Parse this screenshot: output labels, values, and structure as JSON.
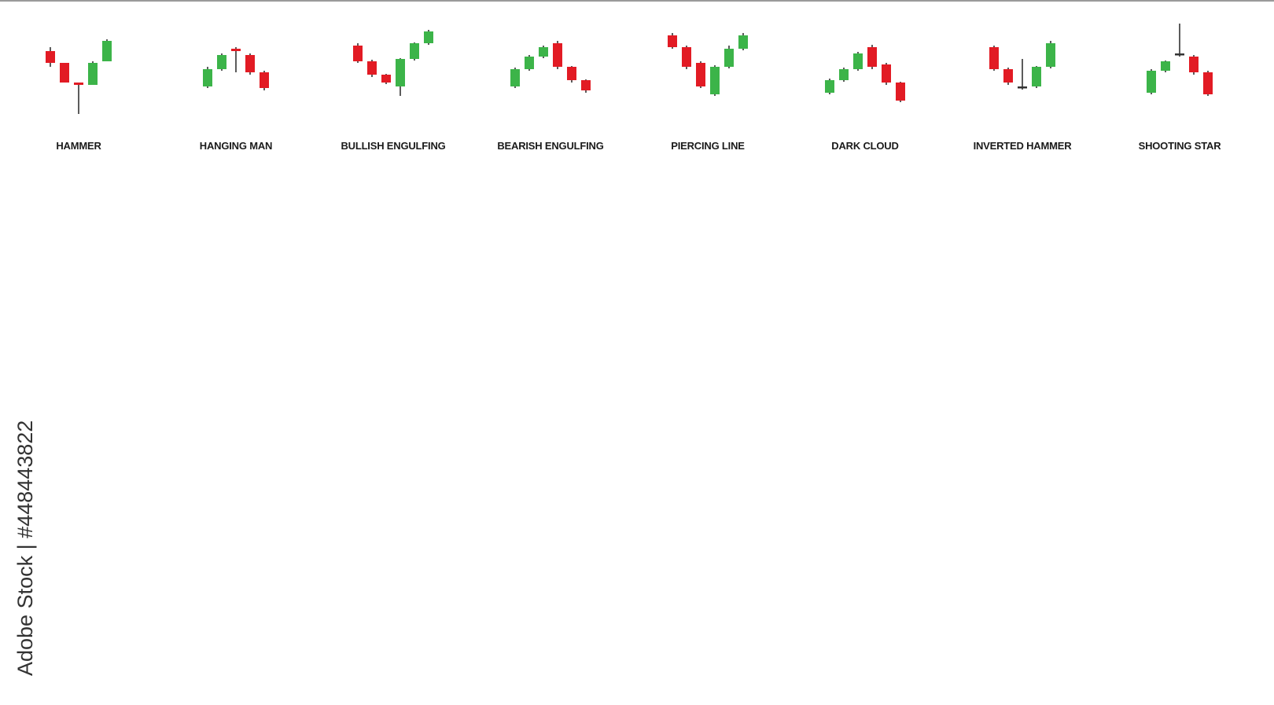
{
  "colors": {
    "bull": "#3cb449",
    "bear": "#e21b24",
    "wick": "#333333",
    "doji": "#333333"
  },
  "watermark": {
    "text": "Adobe Stock | #448443822"
  },
  "patterns": [
    {
      "label": "HAMMER",
      "candles": [
        [
          85,
          70,
          90,
          65
        ],
        [
          70,
          45,
          70,
          45
        ],
        [
          45,
          42,
          45,
          5
        ],
        [
          42,
          70,
          72,
          42
        ],
        [
          72,
          98,
          100,
          72
        ]
      ]
    },
    {
      "label": "HANGING MAN",
      "candles": [
        [
          40,
          62,
          65,
          38
        ],
        [
          62,
          80,
          82,
          60
        ],
        [
          88,
          85,
          90,
          58
        ],
        [
          80,
          58,
          82,
          55
        ],
        [
          58,
          38,
          60,
          35
        ]
      ]
    },
    {
      "label": "BULLISH ENGULFING",
      "candles": [
        [
          92,
          72,
          95,
          70
        ],
        [
          72,
          55,
          74,
          52
        ],
        [
          55,
          45,
          56,
          43
        ],
        [
          40,
          75,
          76,
          28
        ],
        [
          75,
          95,
          96,
          73
        ],
        [
          95,
          110,
          112,
          93
        ]
      ]
    },
    {
      "label": "BEARISH ENGULFING",
      "candles": [
        [
          40,
          62,
          64,
          38
        ],
        [
          62,
          78,
          80,
          60
        ],
        [
          78,
          90,
          92,
          76
        ],
        [
          95,
          65,
          98,
          62
        ],
        [
          65,
          48,
          66,
          45
        ],
        [
          48,
          35,
          49,
          32
        ]
      ]
    },
    {
      "label": "PIERCING LINE",
      "candles": [
        [
          105,
          90,
          108,
          88
        ],
        [
          90,
          65,
          92,
          62
        ],
        [
          70,
          40,
          72,
          38
        ],
        [
          30,
          65,
          67,
          28
        ],
        [
          65,
          88,
          92,
          63
        ],
        [
          88,
          105,
          108,
          86
        ]
      ]
    },
    {
      "label": "DARK CLOUD",
      "candles": [
        [
          32,
          48,
          50,
          30
        ],
        [
          48,
          62,
          64,
          46
        ],
        [
          62,
          82,
          84,
          60
        ],
        [
          90,
          65,
          93,
          62
        ],
        [
          68,
          45,
          70,
          42
        ],
        [
          45,
          22,
          46,
          20
        ]
      ]
    },
    {
      "label": "INVERTED HAMMER",
      "candles": [
        [
          90,
          62,
          92,
          60
        ],
        [
          62,
          45,
          64,
          42
        ],
        [
          38,
          40,
          75,
          36
        ],
        [
          40,
          65,
          66,
          38
        ],
        [
          65,
          95,
          98,
          63
        ]
      ]
    },
    {
      "label": "SHOOTING STAR",
      "candles": [
        [
          32,
          60,
          62,
          30
        ],
        [
          60,
          72,
          73,
          58
        ],
        [
          82,
          80,
          120,
          78
        ],
        [
          78,
          58,
          80,
          55
        ],
        [
          58,
          30,
          60,
          28
        ]
      ]
    }
  ]
}
